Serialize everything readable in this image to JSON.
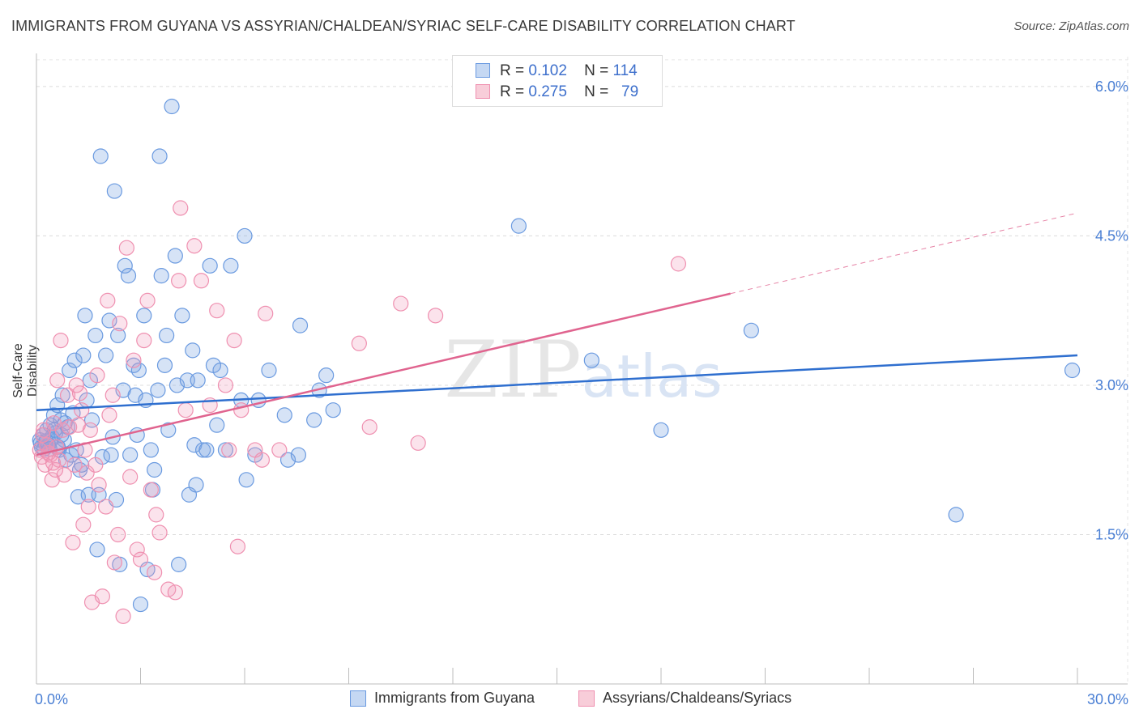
{
  "title": "IMMIGRANTS FROM GUYANA VS ASSYRIAN/CHALDEAN/SYRIAC SELF-CARE DISABILITY CORRELATION CHART",
  "source": "Source: ZipAtlas.com",
  "watermark": "ZIPatlas",
  "colors": {
    "blue": "#6a9ae0",
    "pink": "#ef90b0",
    "blue_line": "#2f6fcf",
    "pink_line": "#e0648f",
    "tick": "#4a7fd4"
  },
  "legend_top": [
    {
      "r_label": "R =",
      "r_value": "0.102",
      "n_label": "N =",
      "n_value": "114"
    },
    {
      "r_label": "R =",
      "r_value": "0.275",
      "n_label": "N =",
      "n_value": "79"
    }
  ],
  "legend_bottom": [
    {
      "label": "Immigrants from Guyana"
    },
    {
      "label": "Assyrians/Chaldeans/Syriacs"
    }
  ],
  "chart_data": {
    "type": "scatter",
    "xlabel": "",
    "ylabel": "Self-Care Disability",
    "xlim": [
      0,
      30
    ],
    "ylim": [
      0,
      6.3
    ],
    "x_tick_labels": [
      "0.0%",
      "30.0%"
    ],
    "y_ticks": [
      1.5,
      3.0,
      4.5,
      6.0
    ],
    "y_tick_labels": [
      "1.5%",
      "3.0%",
      "4.5%",
      "6.0%"
    ],
    "grid": true,
    "legend_position": "top-center",
    "series": [
      {
        "name": "Immigrants from Guyana",
        "color": "#6a9ae0",
        "trend": {
          "x": [
            0,
            30
          ],
          "y": [
            2.75,
            3.3
          ],
          "dashed_extension": false
        },
        "points": [
          [
            0.1,
            2.45
          ],
          [
            0.15,
            2.38
          ],
          [
            0.2,
            2.5
          ],
          [
            0.25,
            2.42
          ],
          [
            0.3,
            2.55
          ],
          [
            0.35,
            2.4
          ],
          [
            0.4,
            2.6
          ],
          [
            0.45,
            2.48
          ],
          [
            0.5,
            2.7
          ],
          [
            0.55,
            2.52
          ],
          [
            0.6,
            2.8
          ],
          [
            0.65,
            2.35
          ],
          [
            0.7,
            2.65
          ],
          [
            0.75,
            2.9
          ],
          [
            0.8,
            2.45
          ],
          [
            0.85,
            2.25
          ],
          [
            0.9,
            2.58
          ],
          [
            0.95,
            3.15
          ],
          [
            1.0,
            2.3
          ],
          [
            1.05,
            2.72
          ],
          [
            1.1,
            3.25
          ],
          [
            1.15,
            2.35
          ],
          [
            1.2,
            1.88
          ],
          [
            1.25,
            2.15
          ],
          [
            1.3,
            2.2
          ],
          [
            1.35,
            3.3
          ],
          [
            1.4,
            3.7
          ],
          [
            1.45,
            2.85
          ],
          [
            1.5,
            1.9
          ],
          [
            1.55,
            3.05
          ],
          [
            1.6,
            2.65
          ],
          [
            1.7,
            3.5
          ],
          [
            1.75,
            1.35
          ],
          [
            1.8,
            1.9
          ],
          [
            1.85,
            5.3
          ],
          [
            1.9,
            2.28
          ],
          [
            2.0,
            3.3
          ],
          [
            2.1,
            3.65
          ],
          [
            2.15,
            2.3
          ],
          [
            2.2,
            2.48
          ],
          [
            2.25,
            4.95
          ],
          [
            2.3,
            1.85
          ],
          [
            2.35,
            3.5
          ],
          [
            2.4,
            1.2
          ],
          [
            2.5,
            2.95
          ],
          [
            2.55,
            4.2
          ],
          [
            2.65,
            4.1
          ],
          [
            2.7,
            2.3
          ],
          [
            2.8,
            3.2
          ],
          [
            2.85,
            2.9
          ],
          [
            2.9,
            2.5
          ],
          [
            2.95,
            3.15
          ],
          [
            3.0,
            0.8
          ],
          [
            3.1,
            3.7
          ],
          [
            3.15,
            2.85
          ],
          [
            3.2,
            1.15
          ],
          [
            3.3,
            2.35
          ],
          [
            3.35,
            1.95
          ],
          [
            3.4,
            2.15
          ],
          [
            3.5,
            2.95
          ],
          [
            3.55,
            5.3
          ],
          [
            3.6,
            4.1
          ],
          [
            3.7,
            3.2
          ],
          [
            3.75,
            3.5
          ],
          [
            3.8,
            2.55
          ],
          [
            3.9,
            5.8
          ],
          [
            4.0,
            4.3
          ],
          [
            4.05,
            3.0
          ],
          [
            4.1,
            1.2
          ],
          [
            4.2,
            3.7
          ],
          [
            4.35,
            3.05
          ],
          [
            4.4,
            1.9
          ],
          [
            4.5,
            3.35
          ],
          [
            4.55,
            2.4
          ],
          [
            4.6,
            2.0
          ],
          [
            4.65,
            3.05
          ],
          [
            4.8,
            2.35
          ],
          [
            4.9,
            2.35
          ],
          [
            5.0,
            4.2
          ],
          [
            5.1,
            3.2
          ],
          [
            5.2,
            2.6
          ],
          [
            5.3,
            3.15
          ],
          [
            5.45,
            2.35
          ],
          [
            5.6,
            4.2
          ],
          [
            5.9,
            2.85
          ],
          [
            6.0,
            4.5
          ],
          [
            6.05,
            2.05
          ],
          [
            6.3,
            2.3
          ],
          [
            6.4,
            2.85
          ],
          [
            6.7,
            3.15
          ],
          [
            7.15,
            2.7
          ],
          [
            7.25,
            2.25
          ],
          [
            7.55,
            2.3
          ],
          [
            7.6,
            3.6
          ],
          [
            8.0,
            2.65
          ],
          [
            8.15,
            2.95
          ],
          [
            8.35,
            3.1
          ],
          [
            8.55,
            2.75
          ],
          [
            13.9,
            4.6
          ],
          [
            16.0,
            3.25
          ],
          [
            18.0,
            2.55
          ],
          [
            20.6,
            3.55
          ],
          [
            26.5,
            1.7
          ],
          [
            29.85,
            3.15
          ],
          [
            0.12,
            2.42
          ],
          [
            0.22,
            2.36
          ],
          [
            0.32,
            2.4
          ],
          [
            0.42,
            2.45
          ],
          [
            0.52,
            2.55
          ],
          [
            0.62,
            2.38
          ],
          [
            0.72,
            2.5
          ],
          [
            0.82,
            2.62
          ],
          [
            0.28,
            2.44
          ],
          [
            0.38,
            2.36
          ]
        ]
      },
      {
        "name": "Assyrians/Chaldeans/Syriacs",
        "color": "#ef90b0",
        "trend": {
          "x": [
            0,
            20
          ],
          "y": [
            2.3,
            3.92
          ],
          "dashed_extension": {
            "x": [
              20,
              30
            ],
            "y": [
              3.92,
              4.73
            ]
          }
        },
        "points": [
          [
            0.1,
            2.35
          ],
          [
            0.2,
            2.55
          ],
          [
            0.25,
            2.2
          ],
          [
            0.3,
            2.4
          ],
          [
            0.4,
            2.3
          ],
          [
            0.45,
            2.05
          ],
          [
            0.5,
            2.62
          ],
          [
            0.55,
            2.15
          ],
          [
            0.6,
            3.05
          ],
          [
            0.65,
            2.25
          ],
          [
            0.7,
            3.45
          ],
          [
            0.75,
            2.55
          ],
          [
            0.8,
            2.1
          ],
          [
            0.9,
            2.9
          ],
          [
            0.95,
            2.58
          ],
          [
            1.05,
            1.42
          ],
          [
            1.1,
            2.2
          ],
          [
            1.15,
            3.0
          ],
          [
            1.2,
            2.6
          ],
          [
            1.25,
            2.92
          ],
          [
            1.3,
            2.75
          ],
          [
            1.35,
            1.6
          ],
          [
            1.4,
            2.35
          ],
          [
            1.45,
            2.12
          ],
          [
            1.5,
            1.78
          ],
          [
            1.55,
            2.55
          ],
          [
            1.6,
            0.82
          ],
          [
            1.7,
            2.2
          ],
          [
            1.75,
            3.1
          ],
          [
            1.8,
            2.0
          ],
          [
            1.9,
            0.88
          ],
          [
            2.0,
            1.78
          ],
          [
            2.05,
            3.85
          ],
          [
            2.1,
            2.7
          ],
          [
            2.2,
            2.9
          ],
          [
            2.25,
            1.22
          ],
          [
            2.35,
            1.5
          ],
          [
            2.4,
            3.62
          ],
          [
            2.5,
            0.68
          ],
          [
            2.6,
            4.38
          ],
          [
            2.7,
            2.08
          ],
          [
            2.8,
            3.25
          ],
          [
            2.9,
            1.35
          ],
          [
            3.0,
            1.25
          ],
          [
            3.1,
            3.45
          ],
          [
            3.2,
            3.85
          ],
          [
            3.3,
            1.95
          ],
          [
            3.4,
            1.12
          ],
          [
            3.45,
            1.7
          ],
          [
            3.55,
            1.52
          ],
          [
            3.8,
            0.95
          ],
          [
            4.0,
            0.92
          ],
          [
            4.1,
            4.05
          ],
          [
            4.15,
            4.78
          ],
          [
            4.3,
            2.75
          ],
          [
            4.55,
            4.4
          ],
          [
            4.75,
            4.05
          ],
          [
            5.0,
            2.8
          ],
          [
            5.2,
            3.75
          ],
          [
            5.45,
            3.0
          ],
          [
            5.55,
            2.35
          ],
          [
            5.7,
            3.45
          ],
          [
            5.8,
            1.38
          ],
          [
            5.9,
            2.75
          ],
          [
            6.3,
            2.35
          ],
          [
            6.5,
            2.25
          ],
          [
            6.6,
            3.72
          ],
          [
            7.0,
            2.35
          ],
          [
            9.3,
            3.42
          ],
          [
            9.6,
            2.58
          ],
          [
            10.5,
            3.82
          ],
          [
            11.0,
            2.42
          ],
          [
            11.5,
            3.7
          ],
          [
            18.5,
            4.22
          ],
          [
            0.15,
            2.28
          ],
          [
            0.35,
            2.32
          ],
          [
            0.18,
            2.5
          ],
          [
            0.48,
            2.22
          ],
          [
            0.58,
            2.38
          ]
        ]
      }
    ]
  }
}
